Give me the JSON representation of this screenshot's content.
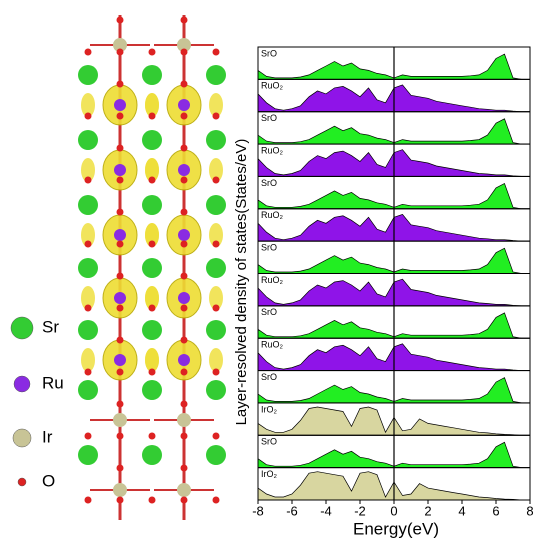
{
  "chart_data": {
    "type": "area",
    "xlabel": "Energy(eV)",
    "ylabel": "Layer-resolved density of states(States/eV)",
    "x": [
      -8,
      -7.5,
      -7,
      -6.5,
      -6,
      -5.5,
      -5,
      -4.5,
      -4,
      -3.5,
      -3,
      -2.5,
      -2,
      -1.5,
      -1,
      -0.5,
      0,
      0.5,
      1,
      1.5,
      2,
      2.5,
      3,
      3.5,
      4,
      4.5,
      5,
      5.5,
      6,
      6.5,
      7,
      7.5,
      8
    ],
    "xlim": [
      -8,
      8
    ],
    "xticks": [
      -8,
      -6,
      -4,
      -2,
      0,
      2,
      4,
      6,
      8
    ],
    "ylim": [
      0,
      1
    ],
    "vline": 0,
    "series": [
      {
        "name": "SrO",
        "color": "#22ee22",
        "values": [
          0.3,
          0.1,
          0.05,
          0.05,
          0.05,
          0.08,
          0.15,
          0.3,
          0.45,
          0.6,
          0.45,
          0.55,
          0.35,
          0.3,
          0.2,
          0.15,
          0.05,
          0.15,
          0.1,
          0.1,
          0.1,
          0.1,
          0.1,
          0.1,
          0.1,
          0.12,
          0.15,
          0.3,
          0.7,
          0.85,
          0.05,
          0,
          0
        ]
      },
      {
        "name": "RuO₂",
        "color": "#8f14e8",
        "values": [
          0.6,
          0.3,
          0.1,
          0.05,
          0.1,
          0.2,
          0.5,
          0.7,
          0.6,
          0.8,
          0.85,
          0.7,
          0.5,
          0.8,
          0.4,
          0.3,
          0.8,
          0.9,
          0.55,
          0.5,
          0.45,
          0.35,
          0.3,
          0.25,
          0.2,
          0.15,
          0.1,
          0.08,
          0.05,
          0.05,
          0.02,
          0,
          0
        ]
      },
      {
        "name": "SrO",
        "color": "#22ee22",
        "values": [
          0.3,
          0.1,
          0.05,
          0.05,
          0.05,
          0.08,
          0.15,
          0.3,
          0.45,
          0.6,
          0.45,
          0.55,
          0.35,
          0.3,
          0.2,
          0.15,
          0.05,
          0.15,
          0.1,
          0.1,
          0.1,
          0.1,
          0.1,
          0.1,
          0.1,
          0.12,
          0.15,
          0.3,
          0.7,
          0.85,
          0.05,
          0,
          0
        ]
      },
      {
        "name": "RuO₂",
        "color": "#8f14e8",
        "values": [
          0.6,
          0.3,
          0.1,
          0.05,
          0.1,
          0.2,
          0.5,
          0.7,
          0.6,
          0.8,
          0.85,
          0.7,
          0.5,
          0.8,
          0.4,
          0.3,
          0.8,
          0.9,
          0.55,
          0.5,
          0.45,
          0.35,
          0.3,
          0.25,
          0.2,
          0.15,
          0.1,
          0.08,
          0.05,
          0.05,
          0.02,
          0,
          0
        ]
      },
      {
        "name": "SrO",
        "color": "#22ee22",
        "values": [
          0.3,
          0.1,
          0.05,
          0.05,
          0.05,
          0.08,
          0.15,
          0.3,
          0.45,
          0.6,
          0.45,
          0.55,
          0.35,
          0.3,
          0.2,
          0.15,
          0.05,
          0.15,
          0.1,
          0.1,
          0.1,
          0.1,
          0.1,
          0.1,
          0.1,
          0.12,
          0.15,
          0.3,
          0.7,
          0.85,
          0.05,
          0,
          0
        ]
      },
      {
        "name": "RuO₂",
        "color": "#8f14e8",
        "values": [
          0.6,
          0.3,
          0.1,
          0.05,
          0.1,
          0.2,
          0.5,
          0.7,
          0.6,
          0.8,
          0.85,
          0.7,
          0.5,
          0.8,
          0.4,
          0.3,
          0.8,
          0.9,
          0.55,
          0.5,
          0.45,
          0.35,
          0.3,
          0.25,
          0.2,
          0.15,
          0.1,
          0.08,
          0.05,
          0.05,
          0.02,
          0,
          0
        ]
      },
      {
        "name": "SrO",
        "color": "#22ee22",
        "values": [
          0.3,
          0.1,
          0.05,
          0.05,
          0.05,
          0.08,
          0.15,
          0.3,
          0.45,
          0.6,
          0.45,
          0.55,
          0.35,
          0.3,
          0.2,
          0.15,
          0.05,
          0.15,
          0.1,
          0.1,
          0.1,
          0.1,
          0.1,
          0.1,
          0.1,
          0.12,
          0.15,
          0.3,
          0.7,
          0.85,
          0.05,
          0,
          0
        ]
      },
      {
        "name": "RuO₂",
        "color": "#8f14e8",
        "values": [
          0.6,
          0.3,
          0.1,
          0.05,
          0.1,
          0.2,
          0.5,
          0.7,
          0.6,
          0.8,
          0.85,
          0.7,
          0.5,
          0.8,
          0.4,
          0.3,
          0.8,
          0.9,
          0.55,
          0.5,
          0.45,
          0.35,
          0.3,
          0.25,
          0.2,
          0.15,
          0.1,
          0.08,
          0.05,
          0.05,
          0.02,
          0,
          0
        ]
      },
      {
        "name": "SrO",
        "color": "#22ee22",
        "values": [
          0.3,
          0.1,
          0.05,
          0.05,
          0.05,
          0.08,
          0.15,
          0.3,
          0.45,
          0.6,
          0.45,
          0.55,
          0.35,
          0.3,
          0.2,
          0.15,
          0.05,
          0.15,
          0.1,
          0.1,
          0.1,
          0.1,
          0.1,
          0.1,
          0.1,
          0.12,
          0.15,
          0.3,
          0.7,
          0.85,
          0.05,
          0,
          0
        ]
      },
      {
        "name": "RuO₂",
        "color": "#8f14e8",
        "values": [
          0.6,
          0.3,
          0.1,
          0.05,
          0.1,
          0.2,
          0.5,
          0.7,
          0.6,
          0.8,
          0.85,
          0.7,
          0.5,
          0.8,
          0.4,
          0.3,
          0.8,
          0.9,
          0.55,
          0.5,
          0.45,
          0.35,
          0.3,
          0.25,
          0.2,
          0.15,
          0.1,
          0.08,
          0.05,
          0.05,
          0.02,
          0,
          0
        ]
      },
      {
        "name": "SrO",
        "color": "#22ee22",
        "values": [
          0.3,
          0.1,
          0.05,
          0.05,
          0.05,
          0.08,
          0.15,
          0.3,
          0.45,
          0.6,
          0.45,
          0.55,
          0.35,
          0.3,
          0.2,
          0.15,
          0.05,
          0.15,
          0.1,
          0.1,
          0.1,
          0.1,
          0.1,
          0.1,
          0.1,
          0.12,
          0.15,
          0.3,
          0.7,
          0.85,
          0.05,
          0,
          0
        ]
      },
      {
        "name": "IrO₂",
        "color": "#d8d6a0",
        "values": [
          0.4,
          0.2,
          0.1,
          0.1,
          0.2,
          0.5,
          0.9,
          0.95,
          0.9,
          0.85,
          0.8,
          0.3,
          0.9,
          0.95,
          0.85,
          0.1,
          0.6,
          0.15,
          0.2,
          0.55,
          0.4,
          0.35,
          0.3,
          0.25,
          0.2,
          0.15,
          0.1,
          0.08,
          0.05,
          0.03,
          0.02,
          0,
          0
        ]
      },
      {
        "name": "SrO",
        "color": "#22ee22",
        "values": [
          0.3,
          0.1,
          0.05,
          0.05,
          0.05,
          0.08,
          0.15,
          0.3,
          0.45,
          0.6,
          0.45,
          0.55,
          0.35,
          0.3,
          0.2,
          0.15,
          0.05,
          0.15,
          0.1,
          0.1,
          0.1,
          0.1,
          0.1,
          0.1,
          0.1,
          0.12,
          0.15,
          0.3,
          0.7,
          0.85,
          0.05,
          0,
          0
        ]
      },
      {
        "name": "IrO₂",
        "color": "#d8d6a0",
        "values": [
          0.4,
          0.2,
          0.1,
          0.1,
          0.2,
          0.5,
          0.9,
          0.95,
          0.9,
          0.85,
          0.8,
          0.3,
          0.9,
          0.95,
          0.85,
          0.1,
          0.6,
          0.15,
          0.2,
          0.55,
          0.4,
          0.35,
          0.3,
          0.25,
          0.2,
          0.15,
          0.1,
          0.08,
          0.05,
          0.03,
          0.02,
          0,
          0
        ]
      }
    ]
  },
  "structure_legend": [
    {
      "label": "Sr",
      "color": "#33cc33"
    },
    {
      "label": "Ru",
      "color": "#8a2be2"
    },
    {
      "label": "Ir",
      "color": "#c8c496"
    },
    {
      "label": "O",
      "color": "#dd2222"
    }
  ]
}
